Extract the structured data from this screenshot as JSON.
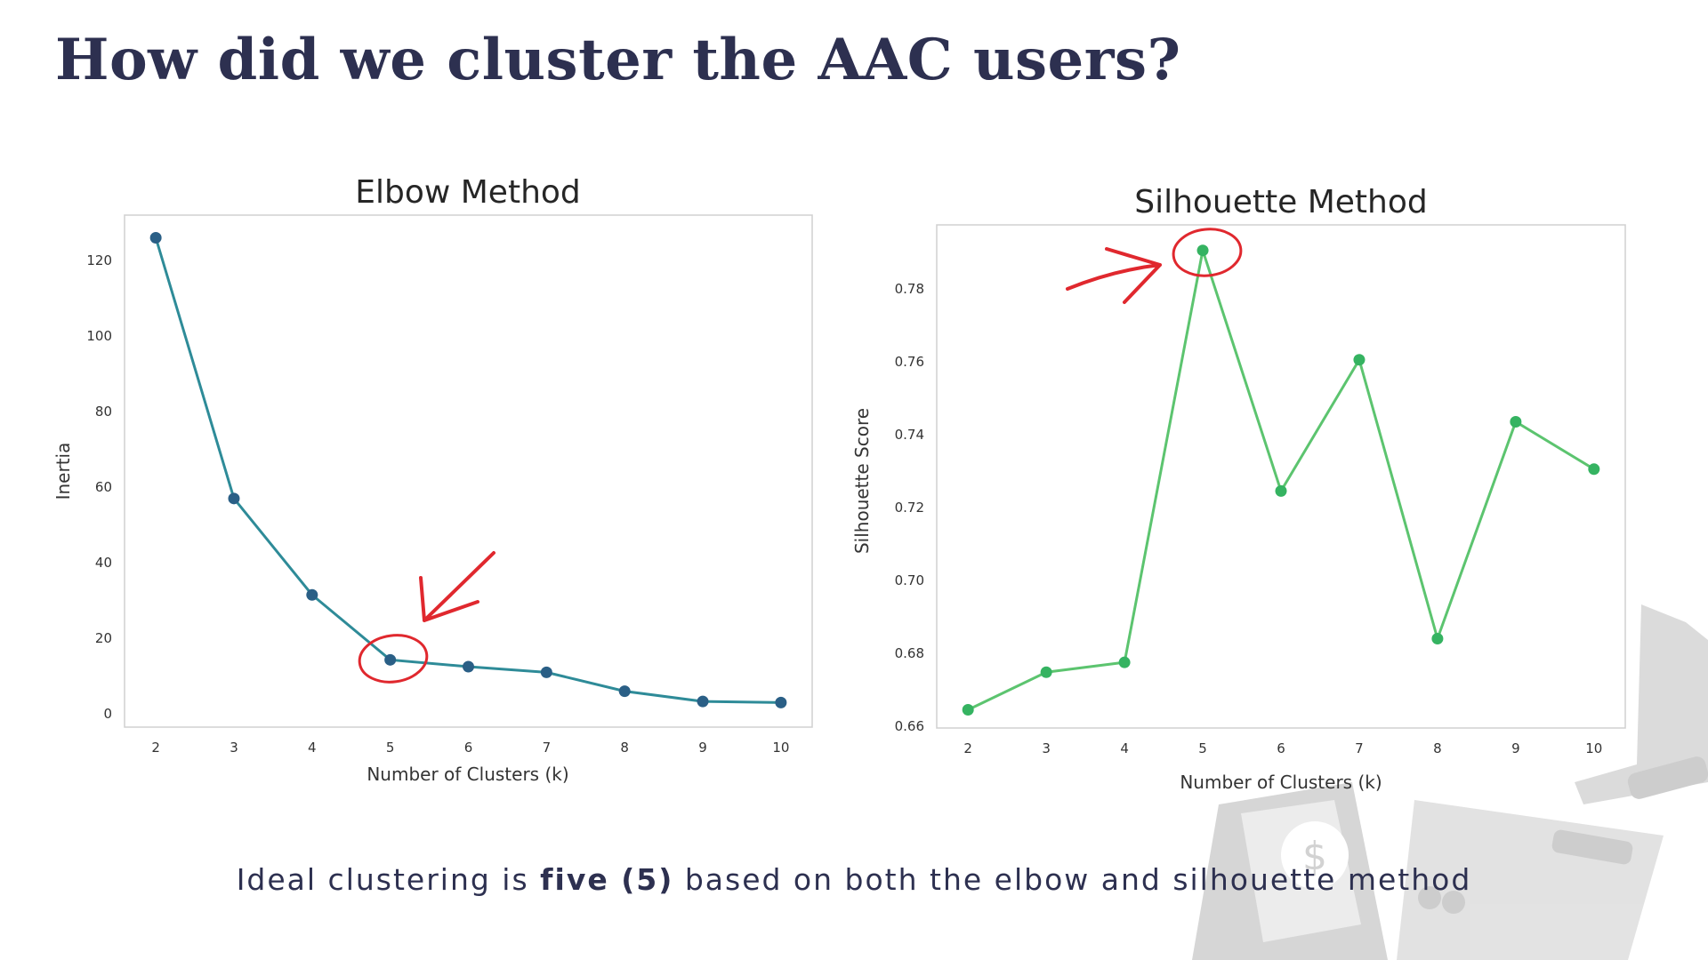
{
  "slide": {
    "title": "How did we cluster the AAC users?",
    "caption_pre": "Ideal clustering is ",
    "caption_bold": "five (5)",
    "caption_post": " based on both the elbow and silhouette method"
  },
  "colors": {
    "title": "#2d3050",
    "elbow_line": "#2e8b98",
    "elbow_marker": "#2a5f86",
    "silhouette_line": "#5cc46f",
    "silhouette_marker": "#35b361",
    "annotation": "#e0282e"
  },
  "chart_data": [
    {
      "type": "line",
      "title": "Elbow Method",
      "xlabel": "Number of Clusters (k)",
      "ylabel": "Inertia",
      "x": [
        2,
        3,
        4,
        5,
        6,
        7,
        8,
        9,
        10
      ],
      "y": [
        126,
        57,
        31.5,
        14.3,
        12.5,
        11,
        6,
        3.3,
        3
      ],
      "xlim": [
        1.6,
        10.4
      ],
      "ylim": [
        -3.5,
        132
      ],
      "xticks": [
        "2",
        "3",
        "4",
        "5",
        "6",
        "7",
        "8",
        "9",
        "10"
      ],
      "yticks": [
        "0",
        "20",
        "40",
        "60",
        "80",
        "100",
        "120"
      ],
      "ytick_values": [
        0,
        20,
        40,
        60,
        80,
        100,
        120
      ],
      "grid": false,
      "highlight_x": 5
    },
    {
      "type": "line",
      "title": "Silhouette Method",
      "xlabel": "Number of Clusters (k)",
      "ylabel": "Silhouette Score",
      "x": [
        2,
        3,
        4,
        5,
        6,
        7,
        8,
        9,
        10
      ],
      "y": [
        0.6645,
        0.6748,
        0.6775,
        0.7905,
        0.7245,
        0.7605,
        0.684,
        0.7435,
        0.7305
      ],
      "xlim": [
        1.6,
        10.4
      ],
      "ylim": [
        0.6595,
        0.7975
      ],
      "xticks": [
        "2",
        "3",
        "4",
        "5",
        "6",
        "7",
        "8",
        "9",
        "10"
      ],
      "yticks": [
        "0.66",
        "0.68",
        "0.70",
        "0.72",
        "0.74",
        "0.76",
        "0.78"
      ],
      "ytick_values": [
        0.66,
        0.68,
        0.7,
        0.72,
        0.74,
        0.76,
        0.78
      ],
      "grid": false,
      "highlight_x": 5
    }
  ]
}
